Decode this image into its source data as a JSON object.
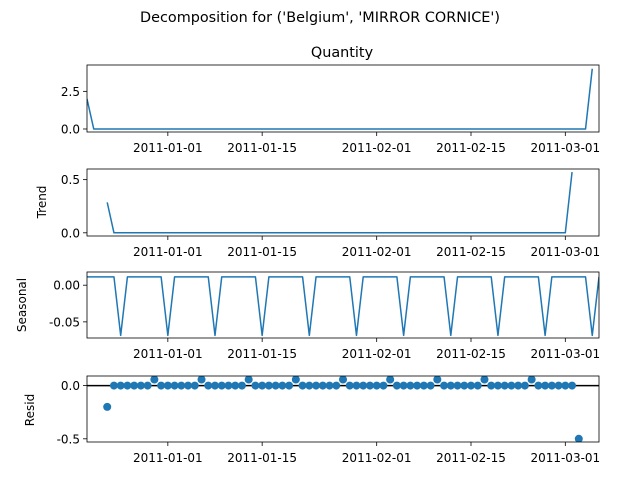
{
  "figure_title": "Decomposition for ('Belgium', 'MIRROR CORNICE')",
  "x_ticks": [
    "2011-01-01",
    "2011-01-15",
    "2011-02-01",
    "2011-02-15",
    "2011-03-01"
  ],
  "line_color": "#1f77b4",
  "chart_data": [
    {
      "type": "line",
      "title": "Quantity",
      "ylabel": "",
      "x_start": "2010-12-20",
      "x_end": "2011-03-06",
      "xlim": [
        "2010-12-20",
        "2011-03-06"
      ],
      "ylim": [
        -0.2,
        4.25
      ],
      "yticks": [
        0.0,
        2.5
      ],
      "ytick_labels": [
        "0.0",
        "2.5"
      ],
      "values": [
        2.0,
        0,
        0,
        0,
        0,
        0,
        0,
        0,
        0,
        0,
        0,
        0,
        0,
        0,
        0,
        0,
        0,
        0,
        0,
        0,
        0,
        0,
        0,
        0,
        0,
        0,
        0,
        0,
        0,
        0,
        0,
        0,
        0,
        0,
        0,
        0,
        0,
        0,
        0,
        0,
        0,
        0,
        0,
        0,
        0,
        0,
        0,
        0,
        0,
        0,
        0,
        0,
        0,
        0,
        0,
        0,
        0,
        0,
        0,
        0,
        0,
        0,
        0,
        0,
        0,
        0,
        0,
        0,
        0,
        0,
        0,
        0,
        0,
        0,
        0,
        4.0
      ]
    },
    {
      "type": "line",
      "title": "",
      "ylabel": "Trend",
      "x_start": "2010-12-23",
      "x_end": "2011-03-03",
      "xlim": [
        "2010-12-20",
        "2011-03-06"
      ],
      "ylim": [
        -0.03,
        0.6
      ],
      "yticks": [
        0.0,
        0.5
      ],
      "ytick_labels": [
        "0.0",
        "0.5"
      ],
      "values": [
        0.286,
        0,
        0,
        0,
        0,
        0,
        0,
        0,
        0,
        0,
        0,
        0,
        0,
        0,
        0,
        0,
        0,
        0,
        0,
        0,
        0,
        0,
        0,
        0,
        0,
        0,
        0,
        0,
        0,
        0,
        0,
        0,
        0,
        0,
        0,
        0,
        0,
        0,
        0,
        0,
        0,
        0,
        0,
        0,
        0,
        0,
        0,
        0,
        0,
        0,
        0,
        0,
        0,
        0,
        0,
        0,
        0,
        0,
        0,
        0,
        0,
        0,
        0,
        0,
        0,
        0,
        0,
        0,
        0,
        0.571
      ]
    },
    {
      "type": "line",
      "title": "",
      "ylabel": "Seasonal",
      "x_start": "2010-12-20",
      "x_end": "2011-03-06",
      "xlim": [
        "2010-12-20",
        "2011-03-06"
      ],
      "ylim": [
        -0.072,
        0.018
      ],
      "yticks": [
        0.0,
        -0.05
      ],
      "ytick_labels": [
        "0.00",
        "-0.05"
      ],
      "pattern_start": 1,
      "weekly_pattern": [
        0.0114,
        0.0114,
        0.0114,
        0.0114,
        0.0114,
        0.0114,
        -0.0684
      ]
    },
    {
      "type": "scatter",
      "title": "",
      "ylabel": "Resid",
      "x_start": "2010-12-23",
      "x_end": "2011-03-03",
      "xlim": [
        "2010-12-20",
        "2011-03-06"
      ],
      "ylim": [
        -0.53,
        0.09
      ],
      "yticks": [
        0.0,
        -0.5
      ],
      "ytick_labels": [
        "0.0",
        "-0.5"
      ],
      "baseline": 0.0,
      "values": [
        -0.2,
        0,
        0,
        0,
        0,
        0,
        0,
        0.057,
        0,
        0,
        0,
        0,
        0,
        0,
        0.057,
        0,
        0,
        0,
        0,
        0,
        0,
        0.057,
        0,
        0,
        0,
        0,
        0,
        0,
        0.057,
        0,
        0,
        0,
        0,
        0,
        0,
        0.057,
        0,
        0,
        0,
        0,
        0,
        0,
        0.057,
        0,
        0,
        0,
        0,
        0,
        0,
        0.057,
        0,
        0,
        0,
        0,
        0,
        0,
        0.057,
        0,
        0,
        0,
        0,
        0,
        0,
        0.057,
        0,
        0,
        0,
        0,
        0,
        0,
        -0.5
      ]
    }
  ]
}
